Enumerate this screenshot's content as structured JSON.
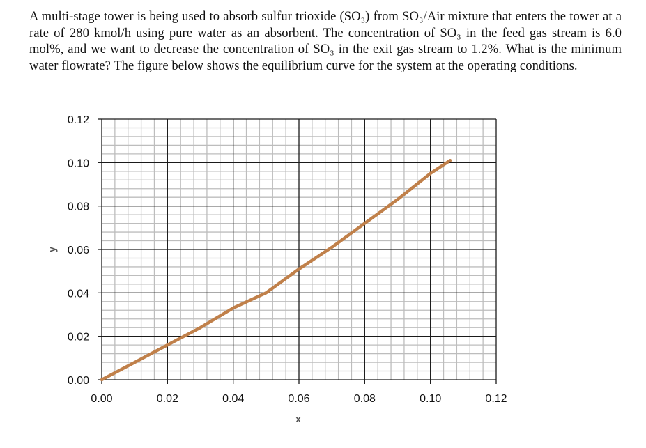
{
  "problem": {
    "text": "A multi-stage tower is being used to absorb sulfur trioxide (SO₃) from SO₃/Air mixture that enters the tower at a rate of 280 kmol/h using pure water as an absorbent. The concentration of SO₃ in the feed gas stream is 6.0 mol%, and we want to decrease the concentration of SO₃ in the exit gas stream to 1.2%. What is the minimum water flowrate? The figure below shows the equilibrium curve for the system at the operating conditions."
  },
  "chart_data": {
    "type": "line",
    "title": "",
    "xlabel": "x",
    "ylabel": "y",
    "xlim": [
      0,
      0.12
    ],
    "ylim": [
      0,
      0.12
    ],
    "x_ticks": [
      "0.00",
      "0.02",
      "0.04",
      "0.06",
      "0.08",
      "0.10",
      "0.12"
    ],
    "y_ticks": [
      "0.00",
      "0.02",
      "0.04",
      "0.06",
      "0.08",
      "0.10",
      "0.12"
    ],
    "grid": {
      "major": true,
      "minor": true,
      "minor_per_major": 5
    },
    "legend": "none",
    "series": [
      {
        "name": "Equilibrium curve",
        "color": "#C0804A",
        "x": [
          0.0,
          0.01,
          0.02,
          0.03,
          0.04,
          0.05,
          0.06,
          0.07,
          0.08,
          0.09,
          0.1,
          0.106
        ],
        "y": [
          0.0,
          0.008,
          0.016,
          0.024,
          0.033,
          0.04,
          0.051,
          0.061,
          0.072,
          0.083,
          0.095,
          0.101
        ]
      }
    ]
  },
  "colors": {
    "curve": "#C0804A",
    "major_grid": "#1a1a1a",
    "minor_grid": "#bdbdbd"
  }
}
